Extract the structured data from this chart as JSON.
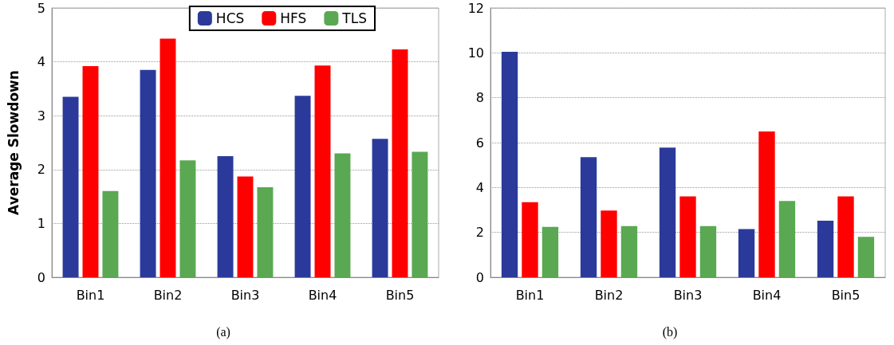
{
  "chart_data": [
    {
      "type": "bar",
      "subtitle": "(a)",
      "ylabel": "Average Slowdown",
      "categories": [
        "Bin1",
        "Bin2",
        "Bin3",
        "Bin4",
        "Bin5"
      ],
      "series": [
        {
          "name": "HCS",
          "color": "#2b3a9a",
          "values": [
            3.35,
            3.85,
            2.25,
            3.37,
            2.57
          ]
        },
        {
          "name": "HFS",
          "color": "#ff0000",
          "values": [
            3.92,
            4.43,
            1.87,
            3.93,
            4.23
          ]
        },
        {
          "name": "TLS",
          "color": "#5aa852",
          "values": [
            1.6,
            2.17,
            1.67,
            2.3,
            2.33
          ]
        }
      ],
      "ylim": [
        0,
        5
      ],
      "yticks": [
        0,
        1,
        2,
        3,
        4,
        5
      ],
      "grid": "y",
      "legend": "top right"
    },
    {
      "type": "bar",
      "subtitle": "(b)",
      "categories": [
        "Bin1",
        "Bin2",
        "Bin3",
        "Bin4",
        "Bin5"
      ],
      "series": [
        {
          "color": "#2b3a9a",
          "values": [
            10.05,
            5.35,
            5.78,
            2.15,
            2.52
          ]
        },
        {
          "color": "#ff0000",
          "values": [
            3.35,
            2.97,
            3.6,
            6.5,
            3.6
          ]
        },
        {
          "color": "#5aa852",
          "values": [
            2.25,
            2.28,
            2.28,
            3.4,
            1.8
          ]
        }
      ],
      "ylim": [
        0,
        12
      ],
      "yticks": [
        0,
        2,
        4,
        6,
        8,
        10,
        12
      ],
      "grid": "y",
      "legend": false
    }
  ]
}
